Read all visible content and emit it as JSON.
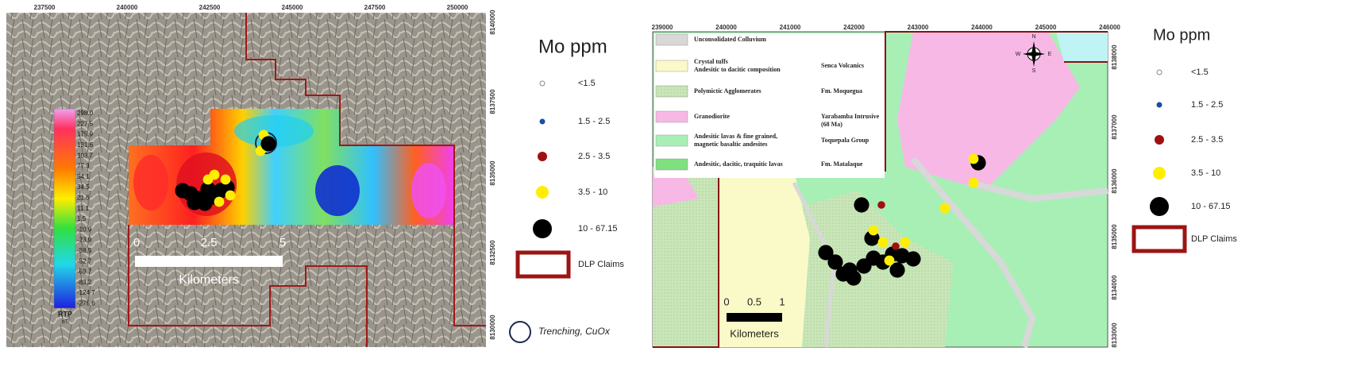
{
  "left_map": {
    "x_labels": [
      237500,
      240000,
      242500,
      245000,
      247500,
      250000
    ],
    "y_labels": [
      8140000,
      8137500,
      8135000,
      8132500,
      8130000
    ],
    "colorbar": {
      "labels": [
        "298.0",
        "227.5",
        "175.9",
        "131.6",
        "103.7",
        "77.3",
        "54.1",
        "34.5",
        "21.6",
        "11.1",
        "1.5",
        "-10.9",
        "-23.9",
        "-38.5",
        "-52.7",
        "-69.7",
        "-83.2",
        "-124.7",
        "-275.6"
      ],
      "title": "RTP",
      "unit": "nT"
    },
    "scale_bar": {
      "labels": [
        0,
        2.5,
        5
      ],
      "unit": "Kilometers"
    }
  },
  "left_legend": {
    "title": "Mo ppm",
    "items": [
      "<1.5",
      "1.5 - 2.5",
      "2.5 - 3.5",
      "3.5 - 10",
      "10 - 67.15"
    ],
    "claims": "DLP Claims",
    "trenching": "Trenching, CuOx"
  },
  "right_map": {
    "x_labels": [
      239000,
      240000,
      241000,
      242000,
      243000,
      244000,
      245000,
      246000
    ],
    "y_labels": [
      8138000,
      8137000,
      8136000,
      8135000,
      8134000,
      8133000
    ],
    "geology_legend": [
      {
        "unit": [
          "Unconsolidated Colluvium"
        ]
      },
      {
        "unit": [
          "Crystal tuffs",
          "Andesitic to dacitic composition"
        ],
        "formation": [
          "Senca Volcanics"
        ]
      },
      {
        "unit": [
          "Polymictic Agglomerates"
        ],
        "formation": [
          "Fm. Moquegua"
        ]
      },
      {
        "unit": [
          "Granodiorite"
        ],
        "formation": [
          "Yarabamba Intrusive",
          "(68 Ma)"
        ]
      },
      {
        "unit": [
          "Andesitic lavas & fine grained,",
          "magnetic basaltic andesites"
        ],
        "formation": [
          "Toquepala Group"
        ]
      },
      {
        "unit": [
          "Andesitic, dacitic, traquitic lavas"
        ],
        "formation": [
          "Fm. Matalaque"
        ]
      }
    ],
    "scale_bar": {
      "labels": [
        0,
        0.5,
        1
      ],
      "unit": "Kilometers"
    },
    "compass": {
      "n": "N",
      "s": "S",
      "e": "E",
      "w": "W"
    }
  },
  "right_legend": {
    "title": "Mo ppm",
    "items": [
      "<1.5",
      "1.5 - 2.5",
      "2.5 - 3.5",
      "3.5 - 10",
      "10 - 67.15"
    ],
    "claims": "DLP Claims"
  }
}
